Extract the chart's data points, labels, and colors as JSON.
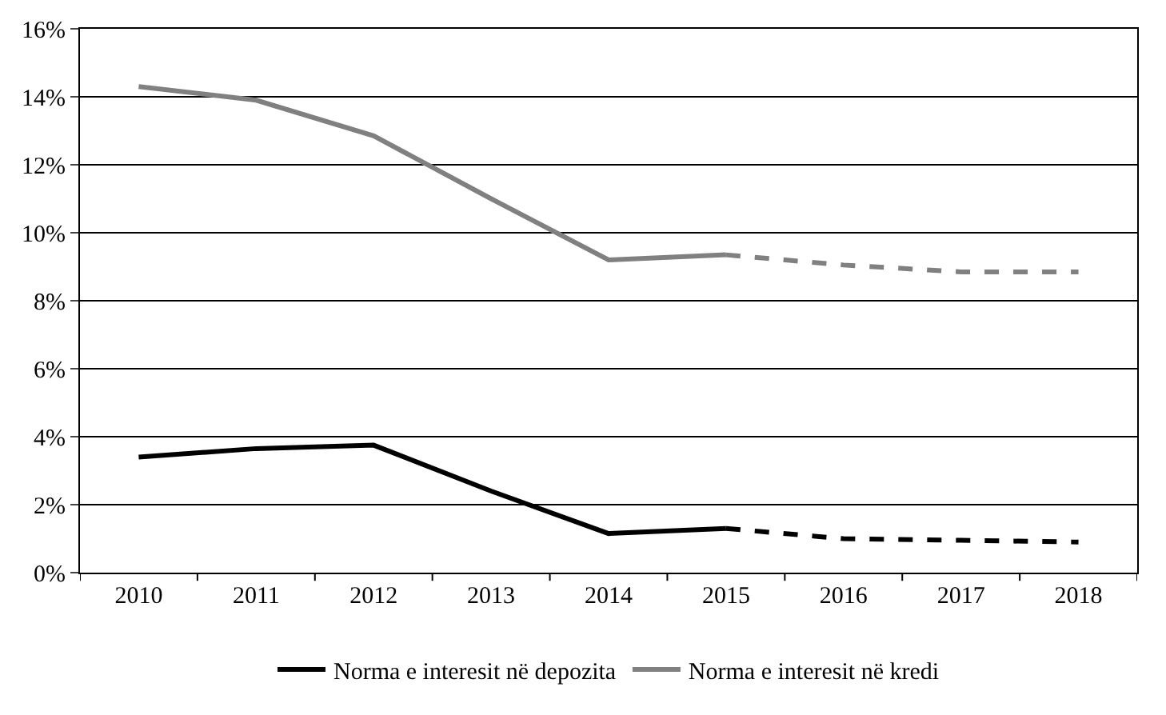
{
  "chart_data": {
    "type": "line",
    "categories": [
      "2010",
      "2011",
      "2012",
      "2013",
      "2014",
      "2015",
      "2016",
      "2017",
      "2018"
    ],
    "series": [
      {
        "name": "Norma e interesit në depozita",
        "color": "#000000",
        "values": [
          3.4,
          3.65,
          3.75,
          2.4,
          1.15,
          1.3,
          null,
          null,
          null
        ]
      },
      {
        "name": "Norma e interesit në kredi",
        "color": "#808080",
        "values": [
          14.3,
          13.9,
          12.85,
          11.0,
          9.2,
          9.35,
          null,
          null,
          null
        ]
      },
      {
        "color": "#000000",
        "line_style": "dashed",
        "values": [
          null,
          null,
          null,
          null,
          null,
          1.3,
          1.0,
          0.95,
          0.9
        ]
      },
      {
        "color": "#808080",
        "line_style": "dashed",
        "values": [
          null,
          null,
          null,
          null,
          null,
          9.35,
          9.05,
          8.85,
          8.85
        ]
      }
    ],
    "ylim": [
      0,
      16
    ],
    "yticks": [
      {
        "value": 0,
        "label": "0%"
      },
      {
        "value": 2,
        "label": "2%"
      },
      {
        "value": 4,
        "label": "4%"
      },
      {
        "value": 6,
        "label": "6%"
      },
      {
        "value": 8,
        "label": "8%"
      },
      {
        "value": 10,
        "label": "10%"
      },
      {
        "value": 12,
        "label": "12%"
      },
      {
        "value": 14,
        "label": "14%"
      },
      {
        "value": 16,
        "label": "16%"
      }
    ],
    "grid": "y",
    "legend": "bottom",
    "marker": "none",
    "line_style": "solid"
  }
}
